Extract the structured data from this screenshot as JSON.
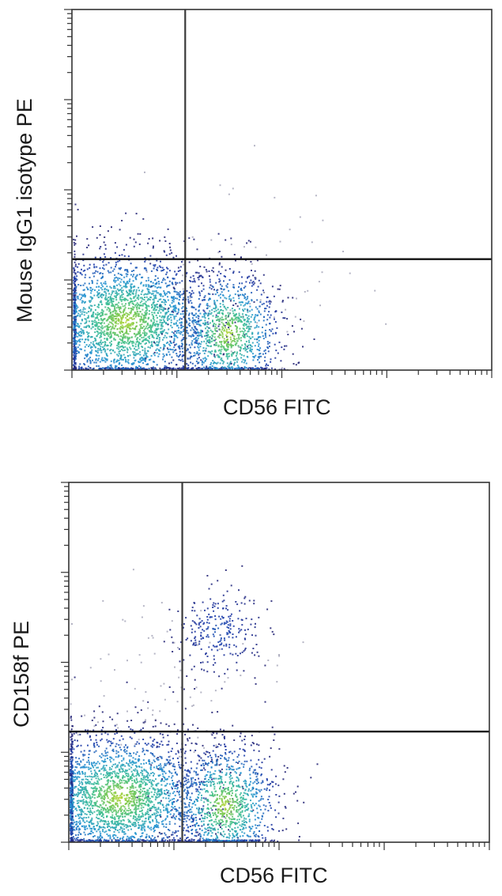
{
  "chart_data": [
    {
      "type": "scatter",
      "title": "",
      "xlabel": "CD56 FITC",
      "ylabel": "Mouse IgG1 isotype PE",
      "x_scale": "log",
      "y_scale": "log",
      "xlim": [
        1,
        10000
      ],
      "ylim": [
        1,
        10000
      ],
      "grid": false,
      "quadrant_gates": {
        "x": 12,
        "y": 17
      },
      "populations": [
        {
          "center": [
            3.2,
            3.5
          ],
          "spread": [
            0.42,
            0.38
          ],
          "count": 2600
        },
        {
          "center": [
            30,
            2.6
          ],
          "spread": [
            0.25,
            0.35
          ],
          "count": 1100
        },
        {
          "center": [
            60,
            8
          ],
          "spread": [
            0.5,
            0.6
          ],
          "count": 60
        }
      ]
    },
    {
      "type": "scatter",
      "title": "",
      "xlabel": "CD56 FITC",
      "ylabel": "CD158f PE",
      "x_scale": "log",
      "y_scale": "log",
      "xlim": [
        1,
        10000
      ],
      "ylim": [
        1,
        10000
      ],
      "grid": false,
      "quadrant_gates": {
        "x": 12,
        "y": 17
      },
      "populations": [
        {
          "center": [
            3.0,
            3.2
          ],
          "spread": [
            0.42,
            0.36
          ],
          "count": 2600
        },
        {
          "center": [
            30,
            2.6
          ],
          "spread": [
            0.25,
            0.35
          ],
          "count": 1100
        },
        {
          "center": [
            26,
            230
          ],
          "spread": [
            0.2,
            0.25
          ],
          "count": 260
        },
        {
          "center": [
            8,
            60
          ],
          "spread": [
            0.5,
            0.5
          ],
          "count": 90
        }
      ]
    }
  ]
}
